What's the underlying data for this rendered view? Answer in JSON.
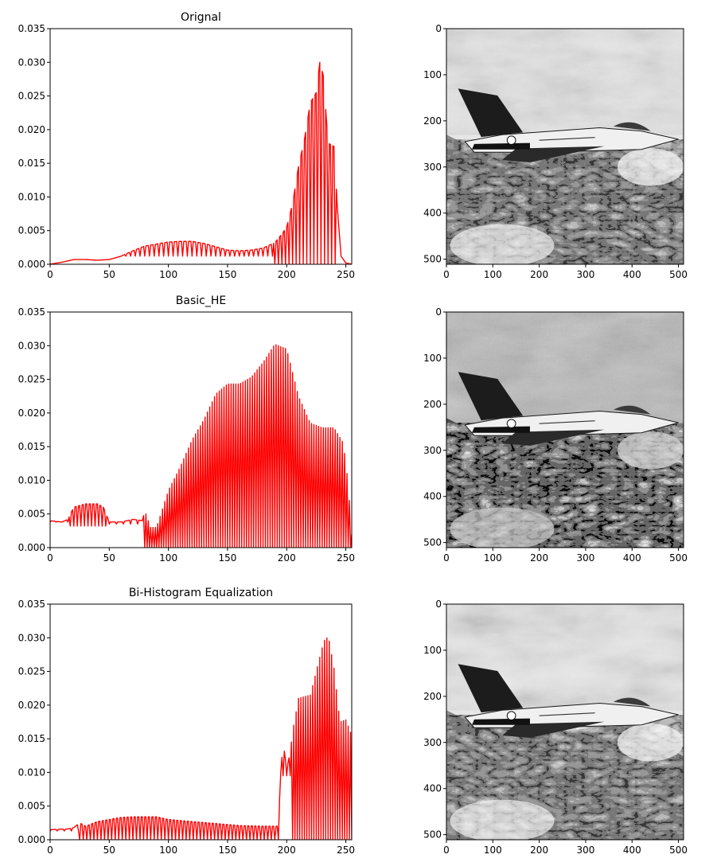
{
  "colors": {
    "line": "#ff0000",
    "axes": "#000000",
    "background": "#ffffff"
  },
  "chart_data": [
    {
      "type": "line",
      "title": "Orignal",
      "xlabel": "",
      "ylabel": "",
      "xlim": [
        0,
        255
      ],
      "ylim": [
        0,
        0.035
      ],
      "xticks": [
        0,
        50,
        100,
        150,
        200,
        250
      ],
      "yticks": [
        "0.000",
        "0.005",
        "0.010",
        "0.015",
        "0.020",
        "0.025",
        "0.030",
        "0.035"
      ],
      "style": "comb_alternating",
      "envelope": [
        [
          0,
          0.0
        ],
        [
          10,
          0.0003
        ],
        [
          20,
          0.0007
        ],
        [
          30,
          0.0007
        ],
        [
          40,
          0.0006
        ],
        [
          50,
          0.0007
        ],
        [
          60,
          0.0012
        ],
        [
          70,
          0.002
        ],
        [
          80,
          0.0027
        ],
        [
          90,
          0.003
        ],
        [
          100,
          0.0033
        ],
        [
          110,
          0.0034
        ],
        [
          120,
          0.0034
        ],
        [
          130,
          0.0031
        ],
        [
          140,
          0.0026
        ],
        [
          150,
          0.0021
        ],
        [
          160,
          0.002
        ],
        [
          170,
          0.0021
        ],
        [
          180,
          0.0024
        ],
        [
          190,
          0.0032
        ],
        [
          196,
          0.0045
        ],
        [
          200,
          0.0055
        ],
        [
          205,
          0.009
        ],
        [
          210,
          0.0145
        ],
        [
          215,
          0.0185
        ],
        [
          220,
          0.024
        ],
        [
          225,
          0.0255
        ],
        [
          228,
          0.03
        ],
        [
          231,
          0.028
        ],
        [
          235,
          0.018
        ],
        [
          240,
          0.0175
        ],
        [
          243,
          0.008
        ],
        [
          246,
          0.0012
        ],
        [
          250,
          0.0002
        ],
        [
          255,
          0.0
        ]
      ],
      "dips": [
        [
          0,
          190,
          0.0012,
          4
        ],
        [
          190,
          244,
          0.0,
          3
        ]
      ]
    },
    {
      "type": "line",
      "title": "Basic_HE",
      "xlabel": "",
      "ylabel": "",
      "xlim": [
        0,
        255
      ],
      "ylim": [
        0,
        0.035
      ],
      "xticks": [
        0,
        50,
        100,
        150,
        200,
        250
      ],
      "yticks": [
        "0.000",
        "0.005",
        "0.010",
        "0.015",
        "0.020",
        "0.025",
        "0.030",
        "0.035"
      ],
      "style": "comb_alternating",
      "envelope": [
        [
          0,
          0.004
        ],
        [
          10,
          0.0038
        ],
        [
          15,
          0.0042
        ],
        [
          20,
          0.006
        ],
        [
          30,
          0.0065
        ],
        [
          40,
          0.0065
        ],
        [
          45,
          0.006
        ],
        [
          50,
          0.0038
        ],
        [
          60,
          0.0038
        ],
        [
          70,
          0.0042
        ],
        [
          78,
          0.004
        ],
        [
          80,
          0.0055
        ],
        [
          85,
          0.003
        ],
        [
          90,
          0.003
        ],
        [
          100,
          0.0085
        ],
        [
          110,
          0.012
        ],
        [
          120,
          0.016
        ],
        [
          130,
          0.019
        ],
        [
          140,
          0.0228
        ],
        [
          150,
          0.0243
        ],
        [
          160,
          0.0243
        ],
        [
          170,
          0.0253
        ],
        [
          180,
          0.0275
        ],
        [
          190,
          0.0302
        ],
        [
          200,
          0.0295
        ],
        [
          210,
          0.0225
        ],
        [
          220,
          0.0185
        ],
        [
          230,
          0.0178
        ],
        [
          240,
          0.0178
        ],
        [
          248,
          0.0155
        ],
        [
          252,
          0.0095
        ],
        [
          255,
          0.002
        ]
      ],
      "dips": [
        [
          0,
          17,
          0.0038,
          5
        ],
        [
          17,
          50,
          0.0032,
          3
        ],
        [
          50,
          80,
          0.0035,
          6
        ],
        [
          80,
          256,
          0.0,
          1.9
        ]
      ]
    },
    {
      "type": "line",
      "title": "Bi-Histogram Equalization",
      "xlabel": "",
      "ylabel": "",
      "xlim": [
        0,
        255
      ],
      "ylim": [
        0,
        0.035
      ],
      "xticks": [
        0,
        50,
        100,
        150,
        200,
        250
      ],
      "yticks": [
        "0.000",
        "0.005",
        "0.010",
        "0.015",
        "0.020",
        "0.025",
        "0.030",
        "0.035"
      ],
      "style": "comb_alternating",
      "envelope": [
        [
          0,
          0.0015
        ],
        [
          15,
          0.0016
        ],
        [
          20,
          0.0018
        ],
        [
          25,
          0.0025
        ],
        [
          30,
          0.002
        ],
        [
          40,
          0.0027
        ],
        [
          50,
          0.003
        ],
        [
          60,
          0.0033
        ],
        [
          70,
          0.0034
        ],
        [
          80,
          0.0034
        ],
        [
          90,
          0.0034
        ],
        [
          100,
          0.003
        ],
        [
          120,
          0.0027
        ],
        [
          140,
          0.0024
        ],
        [
          160,
          0.0021
        ],
        [
          180,
          0.002
        ],
        [
          193,
          0.002
        ],
        [
          195,
          0.01
        ],
        [
          197,
          0.0145
        ],
        [
          200,
          0.0105
        ],
        [
          203,
          0.013
        ],
        [
          205,
          0.016
        ],
        [
          210,
          0.021
        ],
        [
          220,
          0.0215
        ],
        [
          230,
          0.0285
        ],
        [
          233,
          0.0302
        ],
        [
          236,
          0.0295
        ],
        [
          240,
          0.0255
        ],
        [
          245,
          0.0175
        ],
        [
          250,
          0.0178
        ],
        [
          255,
          0.0155
        ]
      ],
      "dips": [
        [
          0,
          25,
          0.0013,
          6
        ],
        [
          25,
          194,
          0.0,
          3.4
        ],
        [
          194,
          205,
          0.0095,
          3
        ],
        [
          205,
          256,
          0.0,
          1.7
        ]
      ]
    },
    {
      "type": "image",
      "title": "",
      "xlim": [
        0,
        511
      ],
      "ylim": [
        511,
        0
      ],
      "xticks": [
        0,
        100,
        200,
        300,
        400,
        500
      ],
      "yticks": [
        0,
        100,
        200,
        300,
        400,
        500
      ],
      "content": "grayscale aircraft over snowy mountains",
      "tone": "light"
    },
    {
      "type": "image",
      "title": "",
      "xlim": [
        0,
        511
      ],
      "ylim": [
        511,
        0
      ],
      "xticks": [
        0,
        100,
        200,
        300,
        400,
        500
      ],
      "yticks": [
        0,
        100,
        200,
        300,
        400,
        500
      ],
      "content": "grayscale aircraft over snowy mountains",
      "tone": "dark"
    },
    {
      "type": "image",
      "title": "",
      "xlim": [
        0,
        511
      ],
      "ylim": [
        511,
        0
      ],
      "xticks": [
        0,
        100,
        200,
        300,
        400,
        500
      ],
      "yticks": [
        0,
        100,
        200,
        300,
        400,
        500
      ],
      "content": "grayscale aircraft over snowy mountains",
      "tone": "light"
    }
  ]
}
